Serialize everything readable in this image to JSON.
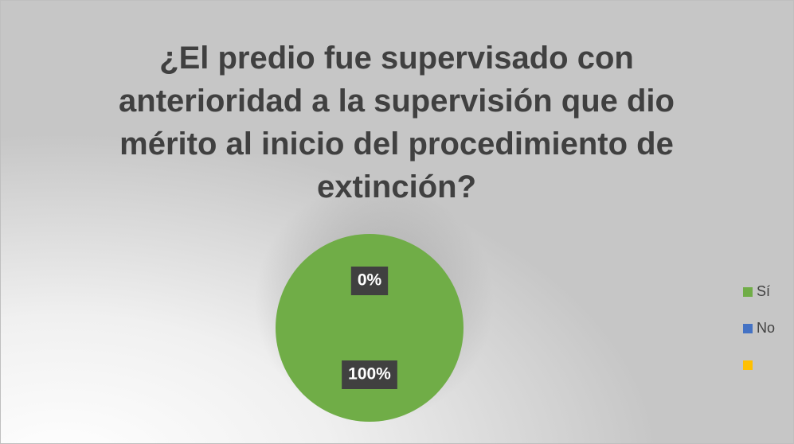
{
  "chart_data": {
    "type": "pie",
    "title": "¿El predio fue supervisado con anterioridad a la supervisión que dio mérito al inicio del procedimiento de extinción?",
    "categories": [
      "Sí",
      "No",
      null
    ],
    "values": [
      100,
      0,
      null
    ],
    "value_labels": [
      "100%",
      "0%",
      null
    ],
    "colors": [
      "#70ad47",
      "#4472c4",
      "#ffc000"
    ],
    "legend": "right"
  }
}
